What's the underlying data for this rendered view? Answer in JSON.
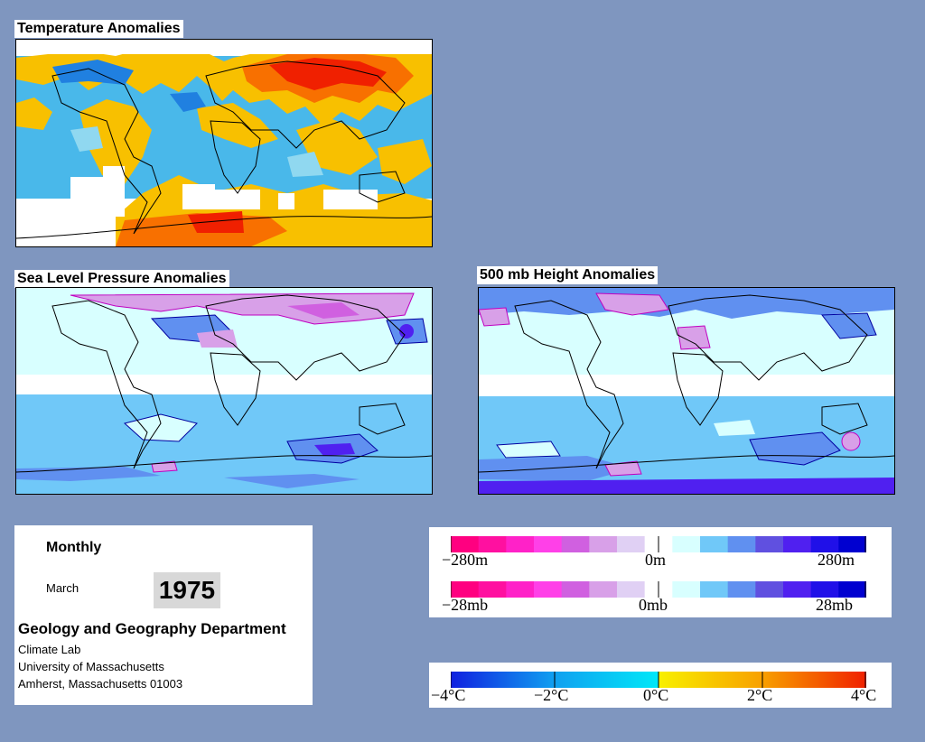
{
  "temperature": {
    "title": "Temperature Anomalies"
  },
  "pressure": {
    "title": "Sea Level Pressure Anomalies"
  },
  "height": {
    "title": "500 mb Height Anomalies"
  },
  "info": {
    "period": "Monthly",
    "month": "March",
    "year": "1975",
    "department": "Geology and Geography Department",
    "lab": "Climate Lab",
    "university": "University of Massachusetts",
    "address": "Amherst, Massachusetts 01003"
  },
  "legend_height": {
    "ticks": [
      "−280m",
      "0m",
      "280m"
    ],
    "colors": [
      "#ff0080",
      "#ff10a0",
      "#ff22c8",
      "#ff40e8",
      "#d060e0",
      "#d8a0e8",
      "#e0d0f4",
      "#ffffff",
      "#d8ffff",
      "#70c8f8",
      "#6090f0",
      "#6050e0",
      "#5020f0",
      "#2010e8",
      "#0000d0"
    ]
  },
  "legend_pressure": {
    "ticks": [
      "−28mb",
      "0mb",
      "28mb"
    ],
    "colors": [
      "#ff0080",
      "#ff10a0",
      "#ff22c8",
      "#ff40e8",
      "#d060e0",
      "#d8a0e8",
      "#e0d0f4",
      "#ffffff",
      "#d8ffff",
      "#70c8f8",
      "#6090f0",
      "#6050e0",
      "#5020f0",
      "#2010e8",
      "#0000d0"
    ]
  },
  "legend_temperature": {
    "ticks": [
      "−4°C",
      "−2°C",
      "0°C",
      "2°C",
      "4°C"
    ],
    "gradient": [
      "#1020e0",
      "#10a0f0",
      "#00e8f8",
      "#f8f000",
      "#f8a000",
      "#f02000"
    ]
  }
}
